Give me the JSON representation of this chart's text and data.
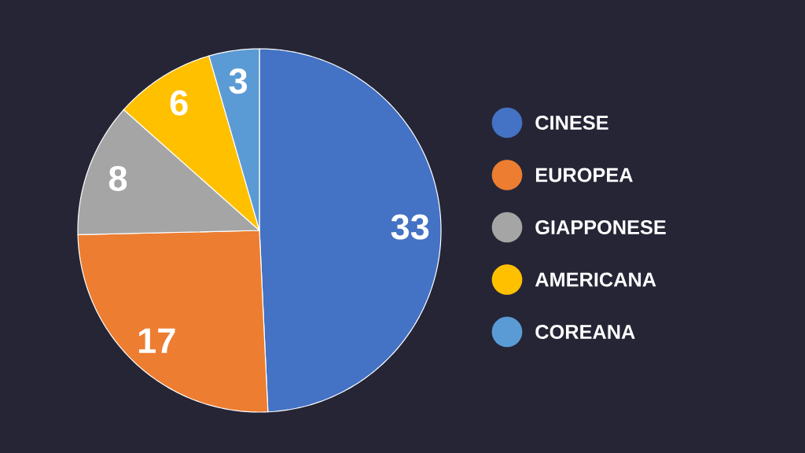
{
  "chart_data": {
    "type": "pie",
    "categories": [
      "CINESE",
      "EUROPEA",
      "GIAPPONESE",
      "AMERICANA",
      "COREANA"
    ],
    "values": [
      33,
      17,
      8,
      6,
      3
    ],
    "colors": [
      "#4472c4",
      "#ed7d31",
      "#a5a5a5",
      "#ffc000",
      "#5b9bd5"
    ],
    "data_labels": true,
    "legend": "right"
  }
}
